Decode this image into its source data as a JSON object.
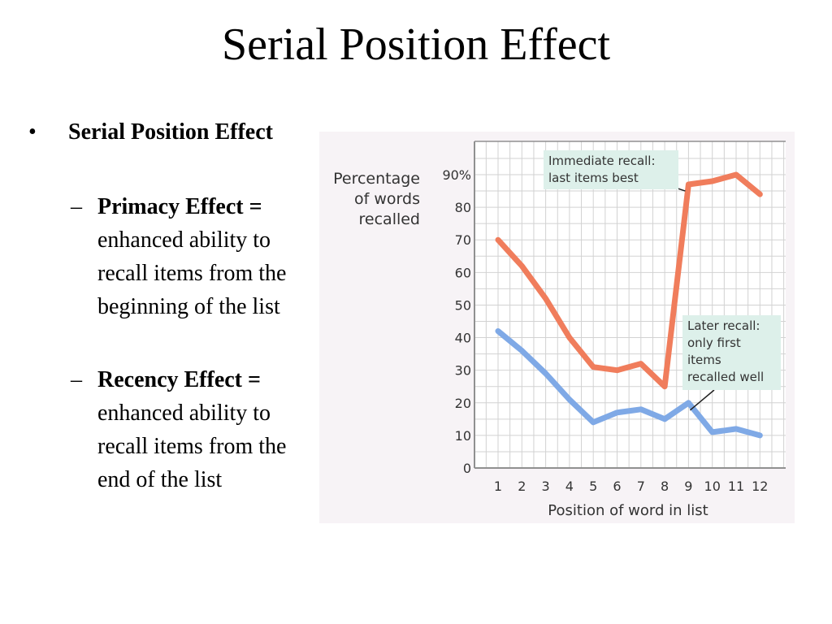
{
  "slide": {
    "title": "Serial Position Effect"
  },
  "bullets": {
    "main": "Serial Position Effect",
    "primacy_term": "Primacy Effect =",
    "primacy_def": "enhanced ability to recall items from the beginning of the list",
    "recency_term": "Recency Effect =",
    "recency_def": "enhanced ability to recall items from the end of the list",
    "bullet_glyph": "•",
    "dash_glyph": "–"
  },
  "chart_data": {
    "type": "line",
    "title": "",
    "xlabel": "Position of word in list",
    "ylabel": [
      "Percentage",
      "of words",
      "recalled"
    ],
    "x": [
      1,
      2,
      3,
      4,
      5,
      6,
      7,
      8,
      9,
      10,
      11,
      12
    ],
    "ylim": [
      0,
      90
    ],
    "yticks": [
      "0",
      "10",
      "20",
      "30",
      "40",
      "50",
      "60",
      "70",
      "80",
      "90%"
    ],
    "grid": true,
    "series": [
      {
        "key": "immediate",
        "color": "#f07d5c",
        "values": [
          70,
          62,
          52,
          40,
          31,
          30,
          32,
          25,
          87,
          88,
          90,
          84
        ]
      },
      {
        "key": "later",
        "color": "#7fa9e6",
        "values": [
          42,
          36,
          29,
          21,
          14,
          17,
          18,
          15,
          20,
          11,
          12,
          10
        ]
      }
    ],
    "annotations": [
      {
        "series": "immediate",
        "lines": [
          "Immediate recall:",
          "last items best"
        ],
        "points_to_x": 9
      },
      {
        "series": "later",
        "lines": [
          "Later recall:",
          "only first",
          "items",
          "recalled well"
        ],
        "points_to_x": 9
      }
    ],
    "colors": {
      "panel_bg": "#f7f3f6",
      "grid": "#d2d2d2",
      "axis": "#909090",
      "callout_bg": "#ddf0ea",
      "callout_text": "#333333",
      "tick_text": "#333333"
    }
  }
}
